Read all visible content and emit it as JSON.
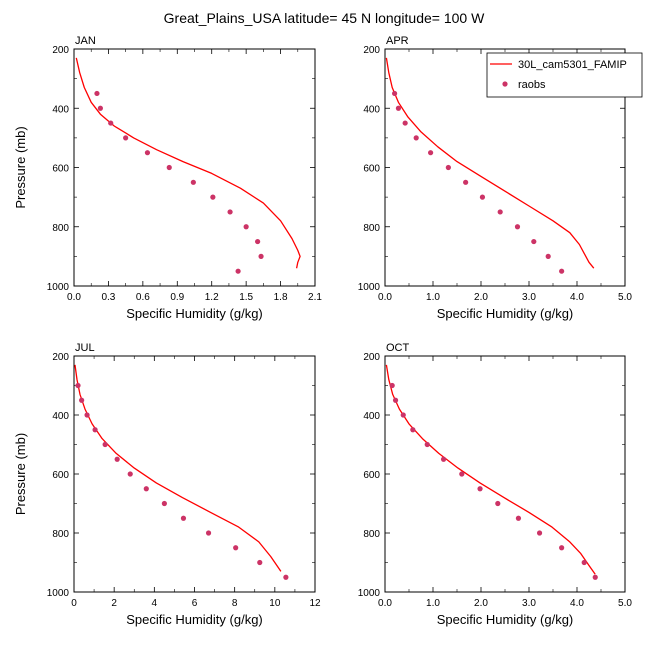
{
  "title": "Great_Plains_USA  latitude= 45 N longitude= 100 W",
  "legend": {
    "model_label": "30L_cam5301_FAMIP",
    "obs_label": "raobs",
    "model_color": "#ff0000",
    "obs_color": "#cc3366"
  },
  "chart_data": [
    {
      "type": "line",
      "panel": "JAN",
      "title": "JAN",
      "xlabel": "Specific Humidity (g/kg)",
      "ylabel": "Pressure (mb)",
      "xlim": [
        0,
        2.1
      ],
      "ylim": [
        1000,
        200
      ],
      "xticks": [
        0,
        0.3,
        0.6,
        0.9,
        1.2,
        1.5,
        1.8,
        2.1
      ],
      "xtick_labels": [
        "0.0",
        "0.3",
        "0.6",
        "0.9",
        "1.2",
        "1.5",
        "1.8",
        "2.1"
      ],
      "yticks": [
        200,
        400,
        600,
        800,
        1000
      ],
      "model": {
        "x": [
          0.02,
          0.05,
          0.09,
          0.15,
          0.23,
          0.35,
          0.52,
          0.72,
          0.95,
          1.2,
          1.45,
          1.65,
          1.8,
          1.9,
          1.95,
          1.97,
          1.95,
          1.94
        ],
        "y": [
          230,
          280,
          330,
          380,
          420,
          460,
          500,
          540,
          580,
          620,
          670,
          720,
          780,
          840,
          880,
          900,
          920,
          940
        ]
      },
      "obs": {
        "x": [
          0.2,
          0.23,
          0.32,
          0.45,
          0.64,
          0.83,
          1.04,
          1.21,
          1.36,
          1.5,
          1.6,
          1.63,
          1.43
        ],
        "y": [
          350,
          400,
          450,
          500,
          550,
          600,
          650,
          700,
          750,
          800,
          850,
          900,
          950
        ]
      }
    },
    {
      "type": "line",
      "panel": "APR",
      "title": "APR",
      "xlabel": "Specific Humidity (g/kg)",
      "ylabel": "",
      "xlim": [
        0,
        5
      ],
      "ylim": [
        1000,
        200
      ],
      "xticks": [
        0,
        1,
        2,
        3,
        4,
        5
      ],
      "xtick_labels": [
        "0.0",
        "1.0",
        "2.0",
        "3.0",
        "4.0",
        "5.0"
      ],
      "yticks": [
        200,
        400,
        600,
        800,
        1000
      ],
      "model": {
        "x": [
          0.03,
          0.08,
          0.15,
          0.28,
          0.48,
          0.75,
          1.1,
          1.5,
          2.0,
          2.5,
          3.0,
          3.5,
          3.85,
          4.05,
          4.15,
          4.25,
          4.35
        ],
        "y": [
          230,
          280,
          330,
          380,
          430,
          480,
          530,
          580,
          630,
          680,
          730,
          780,
          820,
          860,
          890,
          920,
          940
        ]
      },
      "obs": {
        "x": [
          0.2,
          0.28,
          0.42,
          0.65,
          0.95,
          1.32,
          1.68,
          2.03,
          2.4,
          2.76,
          3.1,
          3.4,
          3.68
        ],
        "y": [
          350,
          400,
          450,
          500,
          550,
          600,
          650,
          700,
          750,
          800,
          850,
          900,
          950
        ]
      }
    },
    {
      "type": "line",
      "panel": "JUL",
      "title": "JUL",
      "xlabel": "Specific Humidity (g/kg)",
      "ylabel": "Pressure (mb)",
      "xlim": [
        0,
        12
      ],
      "ylim": [
        1000,
        200
      ],
      "xticks": [
        0,
        2,
        4,
        6,
        8,
        10,
        12
      ],
      "xtick_labels": [
        "0",
        "2",
        "4",
        "6",
        "8",
        "10",
        "12"
      ],
      "yticks": [
        200,
        400,
        600,
        800,
        1000
      ],
      "model": {
        "x": [
          0.05,
          0.15,
          0.3,
          0.55,
          0.9,
          1.4,
          2.1,
          3.0,
          4.1,
          5.4,
          6.8,
          8.2,
          9.2,
          9.8,
          10.3
        ],
        "y": [
          230,
          280,
          330,
          380,
          430,
          480,
          530,
          580,
          630,
          680,
          730,
          780,
          830,
          880,
          930
        ]
      },
      "obs": {
        "x": [
          0.2,
          0.38,
          0.65,
          1.05,
          1.55,
          2.15,
          2.8,
          3.6,
          4.5,
          5.45,
          6.7,
          8.05,
          9.25,
          10.55
        ],
        "y": [
          300,
          350,
          400,
          450,
          500,
          550,
          600,
          650,
          700,
          750,
          800,
          850,
          900,
          950
        ]
      }
    },
    {
      "type": "line",
      "panel": "OCT",
      "title": "OCT",
      "xlabel": "Specific Humidity (g/kg)",
      "ylabel": "",
      "xlim": [
        0,
        5
      ],
      "ylim": [
        1000,
        200
      ],
      "xticks": [
        0,
        1,
        2,
        3,
        4,
        5
      ],
      "xtick_labels": [
        "0.0",
        "1.0",
        "2.0",
        "3.0",
        "4.0",
        "5.0"
      ],
      "yticks": [
        200,
        400,
        600,
        800,
        1000
      ],
      "model": {
        "x": [
          0.03,
          0.08,
          0.16,
          0.3,
          0.5,
          0.78,
          1.12,
          1.52,
          1.98,
          2.48,
          3.0,
          3.48,
          3.85,
          4.08,
          4.25,
          4.38
        ],
        "y": [
          230,
          280,
          330,
          380,
          430,
          480,
          530,
          580,
          630,
          680,
          730,
          780,
          830,
          870,
          910,
          940
        ]
      },
      "obs": {
        "x": [
          0.15,
          0.22,
          0.38,
          0.58,
          0.88,
          1.22,
          1.6,
          1.98,
          2.35,
          2.78,
          3.22,
          3.68,
          4.15,
          4.38
        ],
        "y": [
          300,
          350,
          400,
          450,
          500,
          550,
          600,
          650,
          700,
          750,
          800,
          850,
          900,
          950
        ]
      }
    }
  ]
}
